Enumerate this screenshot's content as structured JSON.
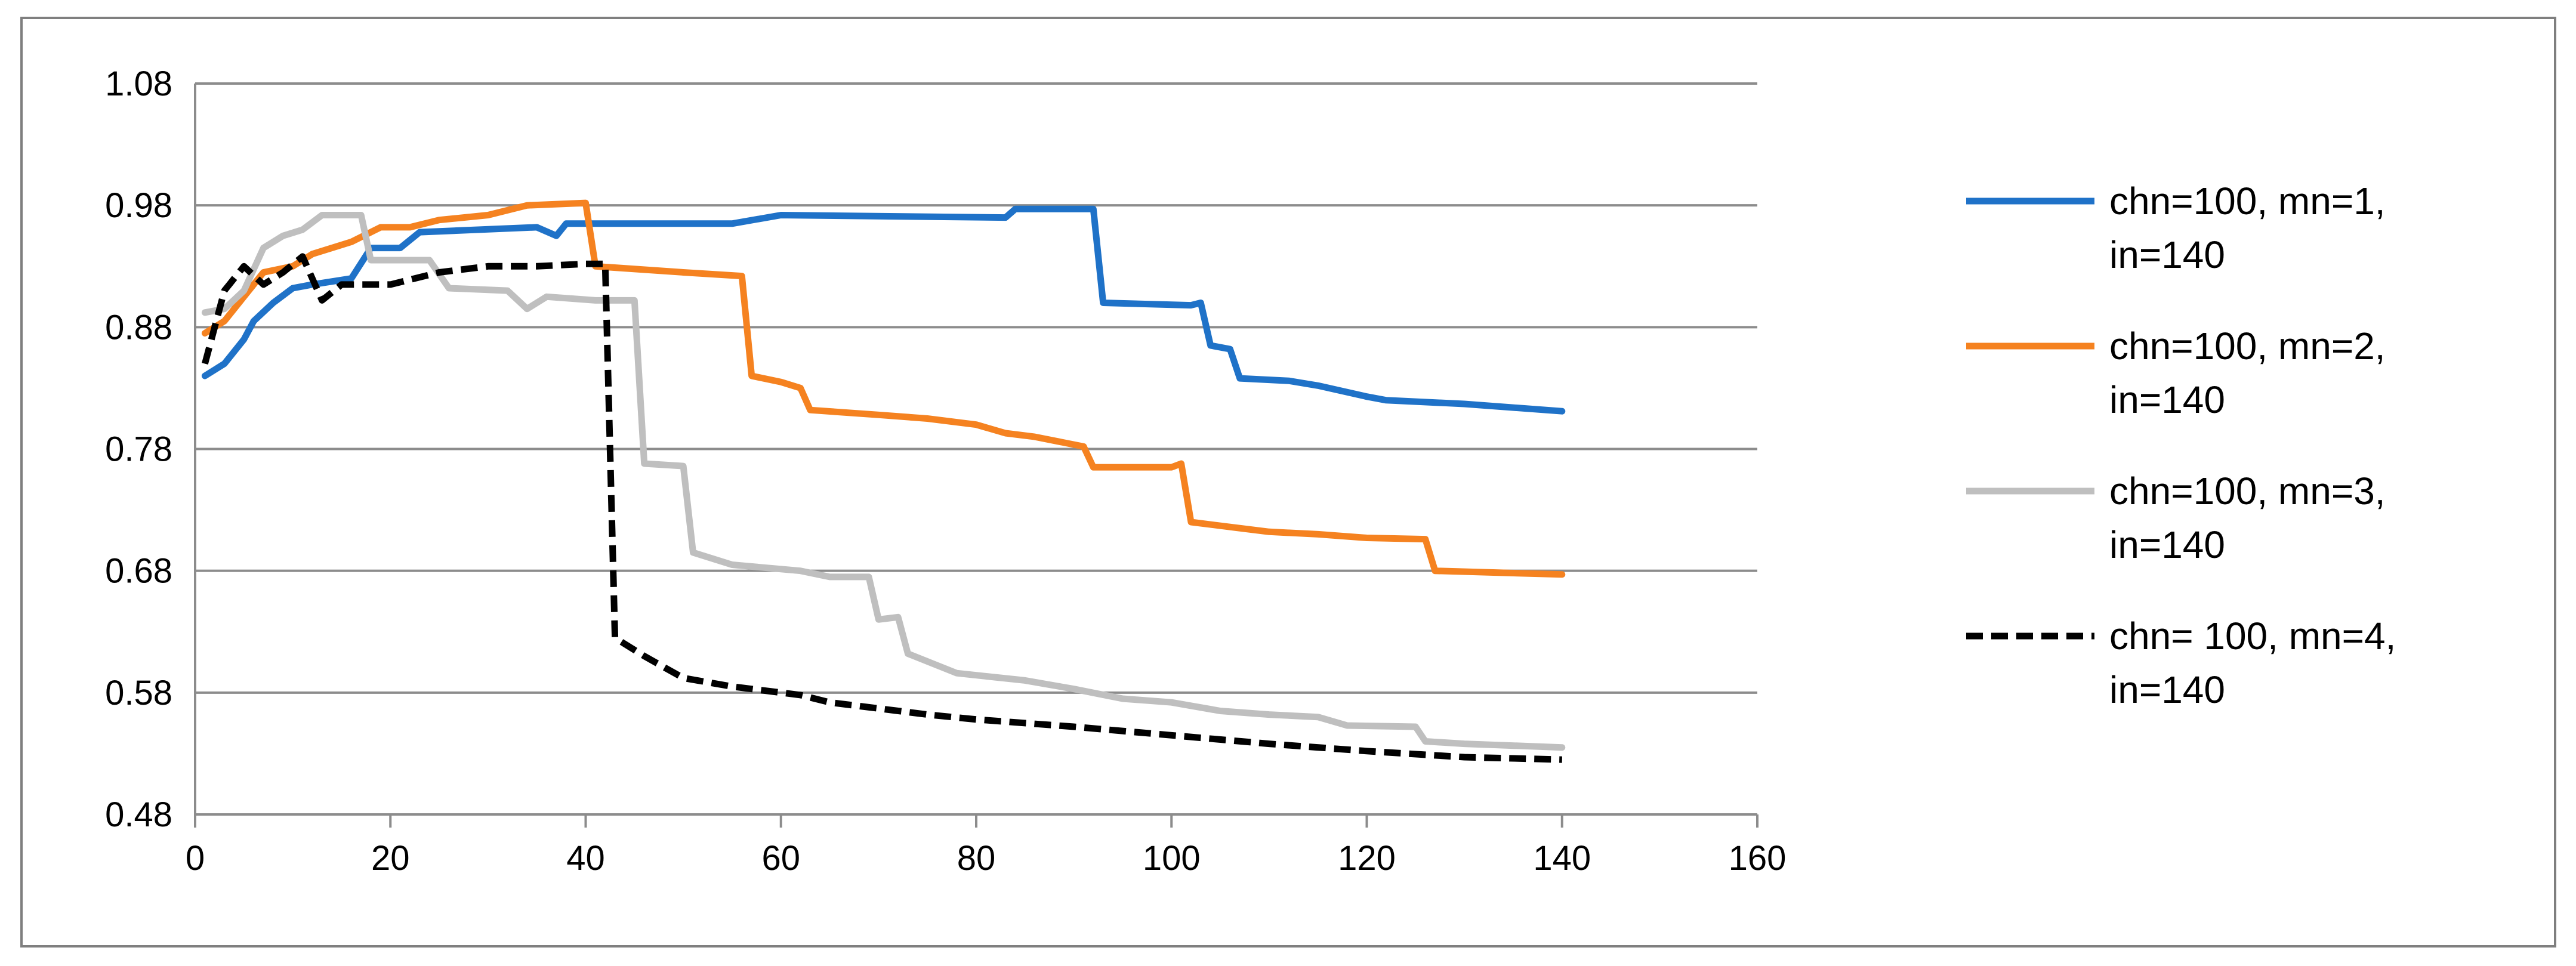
{
  "chart_data": {
    "type": "line",
    "title": "",
    "xlabel": "",
    "ylabel": "",
    "xlim": [
      0,
      160
    ],
    "ylim": [
      0.48,
      1.08
    ],
    "x_ticks": [
      "0",
      "20",
      "40",
      "60",
      "80",
      "100",
      "120",
      "140",
      "160"
    ],
    "y_ticks": [
      "1.08",
      "0.98",
      "0.88",
      "0.78",
      "0.68",
      "0.58",
      "0.48"
    ],
    "y_tick_values": [
      1.08,
      0.98,
      0.88,
      0.78,
      0.68,
      0.58,
      0.48
    ],
    "x_tick_values": [
      0,
      20,
      40,
      60,
      80,
      100,
      120,
      140,
      160
    ],
    "grid": "horizontal",
    "legend_position": "right",
    "series": [
      {
        "name": "chn=100, mn=1, in=140",
        "legend_lines": [
          "chn=100, mn=1,",
          "in=140"
        ],
        "color": "#1f72c8",
        "dash": "solid",
        "points": [
          [
            1,
            0.84
          ],
          [
            3,
            0.85
          ],
          [
            5,
            0.87
          ],
          [
            6,
            0.885
          ],
          [
            8,
            0.9
          ],
          [
            10,
            0.912
          ],
          [
            12,
            0.915
          ],
          [
            16,
            0.92
          ],
          [
            18,
            0.945
          ],
          [
            21,
            0.945
          ],
          [
            23,
            0.958
          ],
          [
            35,
            0.962
          ],
          [
            37,
            0.955
          ],
          [
            38,
            0.965
          ],
          [
            55,
            0.965
          ],
          [
            60,
            0.972
          ],
          [
            83,
            0.97
          ],
          [
            84,
            0.977
          ],
          [
            92,
            0.977
          ],
          [
            93,
            0.9
          ],
          [
            102,
            0.898
          ],
          [
            103,
            0.9
          ],
          [
            104,
            0.865
          ],
          [
            106,
            0.862
          ],
          [
            107,
            0.838
          ],
          [
            112,
            0.836
          ],
          [
            115,
            0.832
          ],
          [
            120,
            0.823
          ],
          [
            122,
            0.82
          ],
          [
            130,
            0.817
          ],
          [
            140,
            0.811
          ]
        ]
      },
      {
        "name": "chn=100, mn=2, in=140",
        "legend_lines": [
          "chn=100, mn=2,",
          "in=140"
        ],
        "color": "#f58220",
        "dash": "solid",
        "points": [
          [
            1,
            0.875
          ],
          [
            3,
            0.885
          ],
          [
            5,
            0.905
          ],
          [
            7,
            0.925
          ],
          [
            10,
            0.93
          ],
          [
            12,
            0.94
          ],
          [
            16,
            0.95
          ],
          [
            19,
            0.962
          ],
          [
            22,
            0.962
          ],
          [
            25,
            0.968
          ],
          [
            30,
            0.972
          ],
          [
            34,
            0.98
          ],
          [
            40,
            0.982
          ],
          [
            41,
            0.93
          ],
          [
            50,
            0.925
          ],
          [
            56,
            0.922
          ],
          [
            57,
            0.84
          ],
          [
            60,
            0.835
          ],
          [
            62,
            0.83
          ],
          [
            63,
            0.812
          ],
          [
            70,
            0.808
          ],
          [
            75,
            0.805
          ],
          [
            80,
            0.8
          ],
          [
            83,
            0.793
          ],
          [
            86,
            0.79
          ],
          [
            91,
            0.782
          ],
          [
            92,
            0.765
          ],
          [
            100,
            0.765
          ],
          [
            101,
            0.768
          ],
          [
            102,
            0.72
          ],
          [
            106,
            0.716
          ],
          [
            110,
            0.712
          ],
          [
            115,
            0.71
          ],
          [
            120,
            0.707
          ],
          [
            126,
            0.706
          ],
          [
            127,
            0.68
          ],
          [
            140,
            0.677
          ]
        ]
      },
      {
        "name": "chn=100, mn=3, in=140",
        "legend_lines": [
          "chn=100, mn=3,",
          "in=140"
        ],
        "color": "#bfbfbf",
        "dash": "solid",
        "points": [
          [
            1,
            0.892
          ],
          [
            3,
            0.895
          ],
          [
            5,
            0.91
          ],
          [
            7,
            0.945
          ],
          [
            9,
            0.955
          ],
          [
            11,
            0.96
          ],
          [
            13,
            0.972
          ],
          [
            17,
            0.972
          ],
          [
            18,
            0.935
          ],
          [
            24,
            0.935
          ],
          [
            26,
            0.912
          ],
          [
            32,
            0.91
          ],
          [
            34,
            0.895
          ],
          [
            36,
            0.905
          ],
          [
            41,
            0.902
          ],
          [
            45,
            0.902
          ],
          [
            46,
            0.768
          ],
          [
            50,
            0.766
          ],
          [
            51,
            0.695
          ],
          [
            55,
            0.685
          ],
          [
            62,
            0.68
          ],
          [
            65,
            0.675
          ],
          [
            69,
            0.675
          ],
          [
            70,
            0.64
          ],
          [
            72,
            0.642
          ],
          [
            73,
            0.612
          ],
          [
            78,
            0.596
          ],
          [
            85,
            0.59
          ],
          [
            90,
            0.583
          ],
          [
            95,
            0.575
          ],
          [
            100,
            0.572
          ],
          [
            105,
            0.565
          ],
          [
            110,
            0.562
          ],
          [
            115,
            0.56
          ],
          [
            118,
            0.553
          ],
          [
            125,
            0.552
          ],
          [
            126,
            0.54
          ],
          [
            130,
            0.538
          ],
          [
            140,
            0.535
          ]
        ]
      },
      {
        "name": "chn= 100, mn=4, in=140",
        "legend_lines": [
          "chn= 100, mn=4,",
          "in=140"
        ],
        "color": "#000000",
        "dash": "dashed",
        "points": [
          [
            1,
            0.85
          ],
          [
            3,
            0.91
          ],
          [
            5,
            0.93
          ],
          [
            7,
            0.915
          ],
          [
            9,
            0.925
          ],
          [
            11,
            0.938
          ],
          [
            13,
            0.902
          ],
          [
            15,
            0.915
          ],
          [
            20,
            0.915
          ],
          [
            25,
            0.925
          ],
          [
            30,
            0.93
          ],
          [
            35,
            0.93
          ],
          [
            40,
            0.932
          ],
          [
            42,
            0.932
          ],
          [
            43,
            0.625
          ],
          [
            46,
            0.61
          ],
          [
            50,
            0.592
          ],
          [
            55,
            0.585
          ],
          [
            62,
            0.578
          ],
          [
            65,
            0.572
          ],
          [
            70,
            0.567
          ],
          [
            75,
            0.562
          ],
          [
            80,
            0.558
          ],
          [
            90,
            0.552
          ],
          [
            100,
            0.545
          ],
          [
            110,
            0.538
          ],
          [
            120,
            0.532
          ],
          [
            130,
            0.527
          ],
          [
            140,
            0.525
          ]
        ]
      }
    ]
  }
}
